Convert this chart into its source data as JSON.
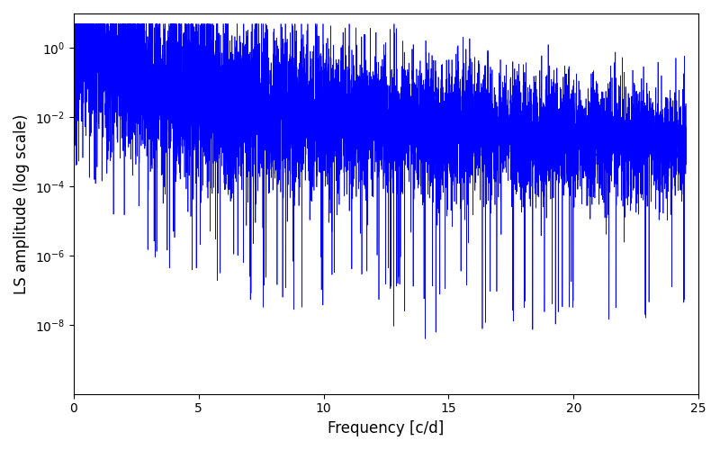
{
  "title": "",
  "xlabel": "Frequency [c/d]",
  "ylabel": "LS amplitude (log scale)",
  "xlim": [
    0,
    25
  ],
  "ylim_log": [
    1e-10,
    10
  ],
  "line_color": "#0000ff",
  "line_width": 0.5,
  "yscale": "log",
  "yticks": [
    1e-08,
    1e-06,
    0.0001,
    0.01,
    1.0
  ],
  "xticks": [
    0,
    5,
    10,
    15,
    20,
    25
  ],
  "freq_max": 24.5,
  "n_points": 8000,
  "seed": 12345
}
